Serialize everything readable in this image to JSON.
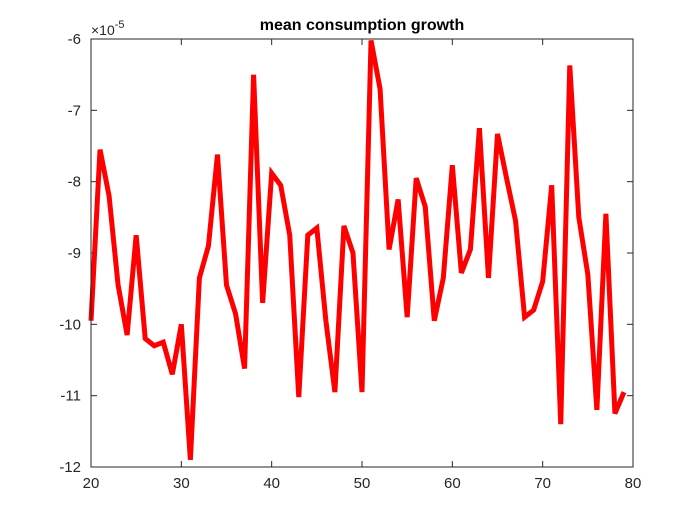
{
  "chart_data": {
    "type": "line",
    "title": "mean consumption growth",
    "xlabel": "",
    "ylabel": "",
    "xlim": [
      20,
      80
    ],
    "ylim": [
      -12,
      -6
    ],
    "y_exponent_label": "×10",
    "y_exponent": "-5",
    "xticks": [
      20,
      30,
      40,
      50,
      60,
      70,
      80
    ],
    "yticks": [
      -12,
      -11,
      -10,
      -9,
      -8,
      -7,
      -6
    ],
    "xtick_labels": [
      "20",
      "30",
      "40",
      "50",
      "60",
      "70",
      "80"
    ],
    "ytick_labels": [
      "-12",
      "-11",
      "-10",
      "-9",
      "-8",
      "-7",
      "-6"
    ],
    "grid": false,
    "series": [
      {
        "color": "#ff0000",
        "x": [
          20,
          21,
          22,
          23,
          24,
          25,
          26,
          27,
          28,
          29,
          30,
          31,
          32,
          33,
          34,
          35,
          36,
          37,
          38,
          39,
          40,
          41,
          42,
          43,
          44,
          45,
          46,
          47,
          48,
          49,
          50,
          51,
          52,
          53,
          54,
          55,
          56,
          57,
          58,
          59,
          60,
          61,
          62,
          63,
          64,
          65,
          66,
          67,
          68,
          69,
          70,
          71,
          72,
          73,
          74,
          75,
          76,
          77,
          78,
          79
        ],
        "y": [
          -9.95,
          -7.55,
          -8.2,
          -9.45,
          -10.15,
          -8.75,
          -10.2,
          -10.3,
          -10.25,
          -10.7,
          -10.0,
          -11.9,
          -9.35,
          -8.9,
          -7.62,
          -9.45,
          -9.85,
          -10.62,
          -6.5,
          -9.7,
          -7.88,
          -8.05,
          -8.75,
          -11.02,
          -8.75,
          -8.65,
          -9.95,
          -10.95,
          -8.62,
          -9.0,
          -10.95,
          -6.02,
          -6.7,
          -8.95,
          -8.25,
          -9.9,
          -7.95,
          -8.35,
          -9.95,
          -9.35,
          -7.77,
          -9.28,
          -8.95,
          -7.25,
          -9.35,
          -7.33,
          -7.95,
          -8.55,
          -9.9,
          -9.8,
          -9.4,
          -8.05,
          -11.4,
          -6.37,
          -8.5,
          -9.3,
          -11.2,
          -8.45,
          -11.25,
          -10.95
        ]
      }
    ]
  }
}
